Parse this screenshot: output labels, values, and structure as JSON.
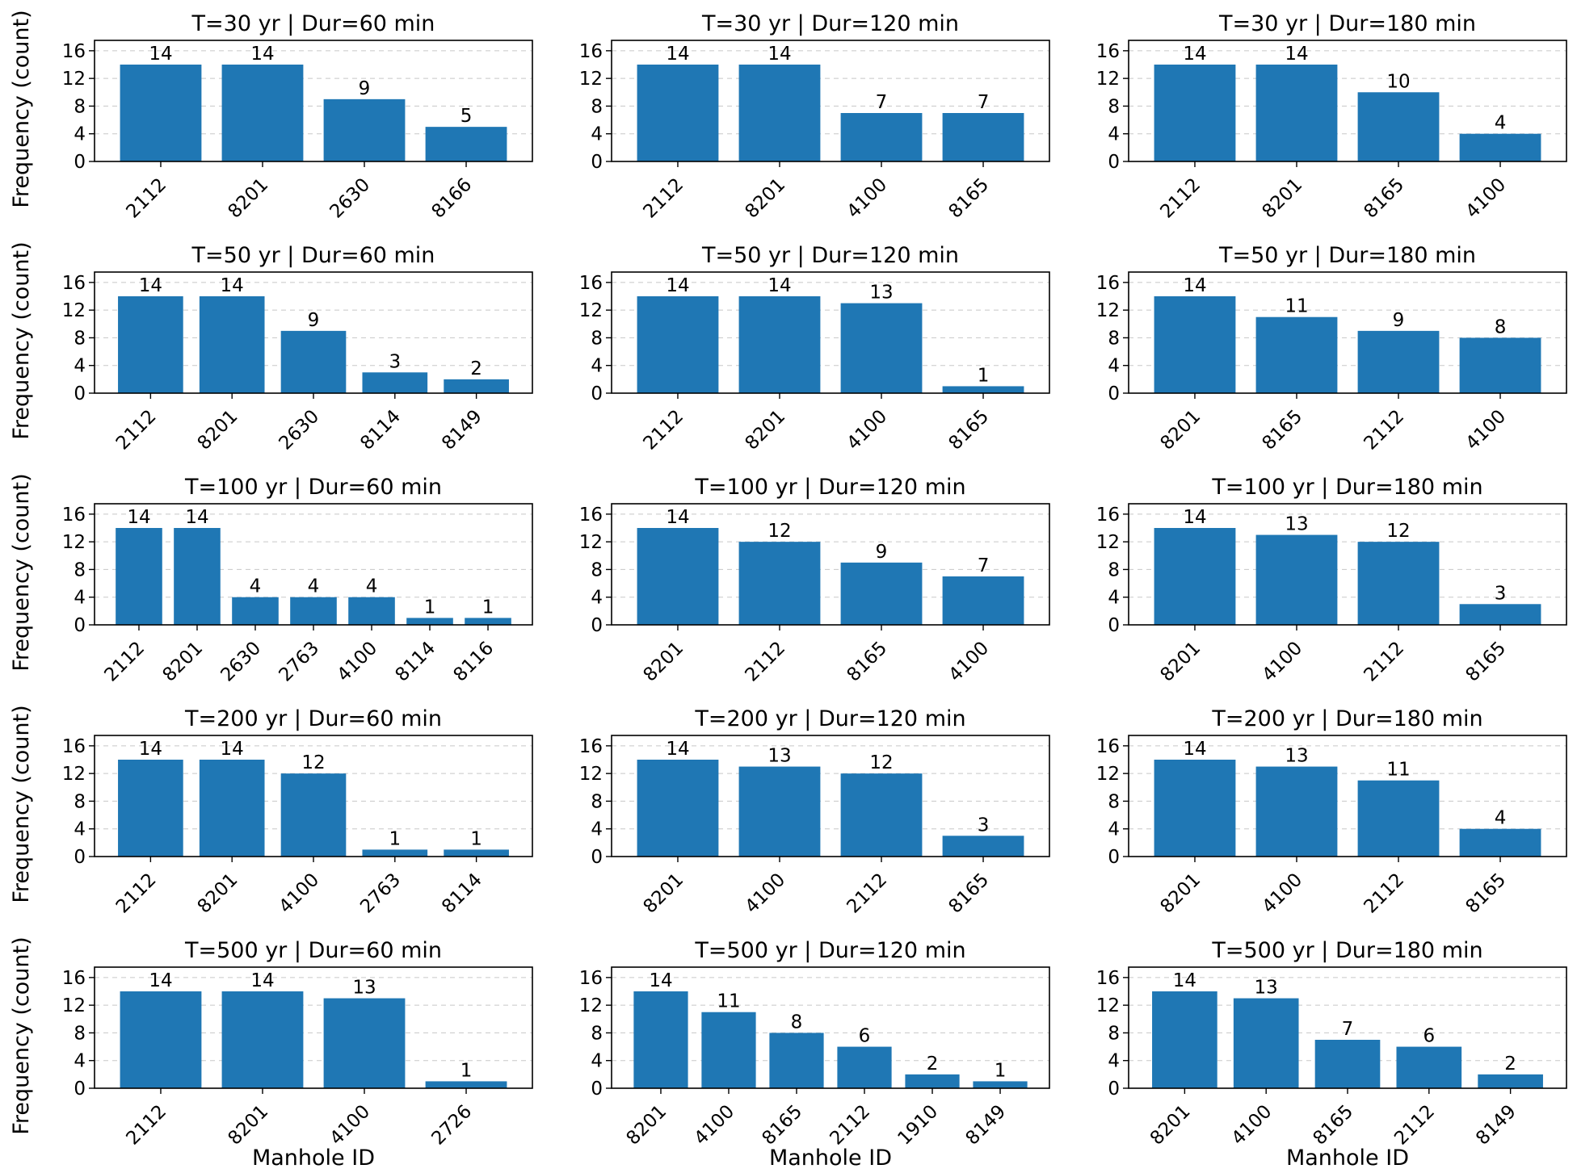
{
  "chart_data": [
    {
      "type": "bar",
      "title": "T=30 yr | Dur=60 min",
      "categories": [
        "2112",
        "8201",
        "2630",
        "8166"
      ],
      "values": [
        14,
        14,
        9,
        5
      ],
      "ylabel": "Frequency (count)",
      "xlabel": "",
      "ylim": [
        0,
        17.5
      ],
      "yticks": [
        "0",
        "4",
        "8",
        "12",
        "16"
      ],
      "grid": "y"
    },
    {
      "type": "bar",
      "title": "T=30 yr | Dur=120 min",
      "categories": [
        "2112",
        "8201",
        "4100",
        "8165"
      ],
      "values": [
        14,
        14,
        7,
        7
      ],
      "ylabel": "",
      "xlabel": "",
      "ylim": [
        0,
        17.5
      ],
      "yticks": [
        "0",
        "4",
        "8",
        "12",
        "16"
      ],
      "grid": "y"
    },
    {
      "type": "bar",
      "title": "T=30 yr | Dur=180 min",
      "categories": [
        "2112",
        "8201",
        "8165",
        "4100"
      ],
      "values": [
        14,
        14,
        10,
        4
      ],
      "ylabel": "",
      "xlabel": "",
      "ylim": [
        0,
        17.5
      ],
      "yticks": [
        "0",
        "4",
        "8",
        "12",
        "16"
      ],
      "grid": "y"
    },
    {
      "type": "bar",
      "title": "T=50 yr | Dur=60 min",
      "categories": [
        "2112",
        "8201",
        "2630",
        "8114",
        "8149"
      ],
      "values": [
        14,
        14,
        9,
        3,
        2
      ],
      "ylabel": "Frequency (count)",
      "xlabel": "",
      "ylim": [
        0,
        17.5
      ],
      "yticks": [
        "0",
        "4",
        "8",
        "12",
        "16"
      ],
      "grid": "y"
    },
    {
      "type": "bar",
      "title": "T=50 yr | Dur=120 min",
      "categories": [
        "2112",
        "8201",
        "4100",
        "8165"
      ],
      "values": [
        14,
        14,
        13,
        1
      ],
      "ylabel": "",
      "xlabel": "",
      "ylim": [
        0,
        17.5
      ],
      "yticks": [
        "0",
        "4",
        "8",
        "12",
        "16"
      ],
      "grid": "y"
    },
    {
      "type": "bar",
      "title": "T=50 yr | Dur=180 min",
      "categories": [
        "8201",
        "8165",
        "2112",
        "4100"
      ],
      "values": [
        14,
        11,
        9,
        8
      ],
      "ylabel": "",
      "xlabel": "",
      "ylim": [
        0,
        17.5
      ],
      "yticks": [
        "0",
        "4",
        "8",
        "12",
        "16"
      ],
      "grid": "y"
    },
    {
      "type": "bar",
      "title": "T=100 yr | Dur=60 min",
      "categories": [
        "2112",
        "8201",
        "2630",
        "2763",
        "4100",
        "8114",
        "8116"
      ],
      "values": [
        14,
        14,
        4,
        4,
        4,
        1,
        1
      ],
      "ylabel": "Frequency (count)",
      "xlabel": "",
      "ylim": [
        0,
        17.5
      ],
      "yticks": [
        "0",
        "4",
        "8",
        "12",
        "16"
      ],
      "grid": "y"
    },
    {
      "type": "bar",
      "title": "T=100 yr | Dur=120 min",
      "categories": [
        "8201",
        "2112",
        "8165",
        "4100"
      ],
      "values": [
        14,
        12,
        9,
        7
      ],
      "ylabel": "",
      "xlabel": "",
      "ylim": [
        0,
        17.5
      ],
      "yticks": [
        "0",
        "4",
        "8",
        "12",
        "16"
      ],
      "grid": "y"
    },
    {
      "type": "bar",
      "title": "T=100 yr | Dur=180 min",
      "categories": [
        "8201",
        "4100",
        "2112",
        "8165"
      ],
      "values": [
        14,
        13,
        12,
        3
      ],
      "ylabel": "",
      "xlabel": "",
      "ylim": [
        0,
        17.5
      ],
      "yticks": [
        "0",
        "4",
        "8",
        "12",
        "16"
      ],
      "grid": "y"
    },
    {
      "type": "bar",
      "title": "T=200 yr | Dur=60 min",
      "categories": [
        "2112",
        "8201",
        "4100",
        "2763",
        "8114"
      ],
      "values": [
        14,
        14,
        12,
        1,
        1
      ],
      "ylabel": "Frequency (count)",
      "xlabel": "",
      "ylim": [
        0,
        17.5
      ],
      "yticks": [
        "0",
        "4",
        "8",
        "12",
        "16"
      ],
      "grid": "y"
    },
    {
      "type": "bar",
      "title": "T=200 yr | Dur=120 min",
      "categories": [
        "8201",
        "4100",
        "2112",
        "8165"
      ],
      "values": [
        14,
        13,
        12,
        3
      ],
      "ylabel": "",
      "xlabel": "",
      "ylim": [
        0,
        17.5
      ],
      "yticks": [
        "0",
        "4",
        "8",
        "12",
        "16"
      ],
      "grid": "y"
    },
    {
      "type": "bar",
      "title": "T=200 yr | Dur=180 min",
      "categories": [
        "8201",
        "4100",
        "2112",
        "8165"
      ],
      "values": [
        14,
        13,
        11,
        4
      ],
      "ylabel": "",
      "xlabel": "",
      "ylim": [
        0,
        17.5
      ],
      "yticks": [
        "0",
        "4",
        "8",
        "12",
        "16"
      ],
      "grid": "y"
    },
    {
      "type": "bar",
      "title": "T=500 yr | Dur=60 min",
      "categories": [
        "2112",
        "8201",
        "4100",
        "2726"
      ],
      "values": [
        14,
        14,
        13,
        1
      ],
      "ylabel": "Frequency (count)",
      "xlabel": "Manhole ID",
      "ylim": [
        0,
        17.5
      ],
      "yticks": [
        "0",
        "4",
        "8",
        "12",
        "16"
      ],
      "grid": "y"
    },
    {
      "type": "bar",
      "title": "T=500 yr | Dur=120 min",
      "categories": [
        "8201",
        "4100",
        "8165",
        "2112",
        "1910",
        "8149"
      ],
      "values": [
        14,
        11,
        8,
        6,
        2,
        1
      ],
      "ylabel": "",
      "xlabel": "Manhole ID",
      "ylim": [
        0,
        17.5
      ],
      "yticks": [
        "0",
        "4",
        "8",
        "12",
        "16"
      ],
      "grid": "y"
    },
    {
      "type": "bar",
      "title": "T=500 yr | Dur=180 min",
      "categories": [
        "8201",
        "4100",
        "8165",
        "2112",
        "8149"
      ],
      "values": [
        14,
        13,
        7,
        6,
        2
      ],
      "ylabel": "",
      "xlabel": "Manhole ID",
      "ylim": [
        0,
        17.5
      ],
      "yticks": [
        "0",
        "4",
        "8",
        "12",
        "16"
      ],
      "grid": "y"
    }
  ],
  "colors": {
    "bar": "#1f77b4",
    "grid": "#c8c8c8"
  }
}
